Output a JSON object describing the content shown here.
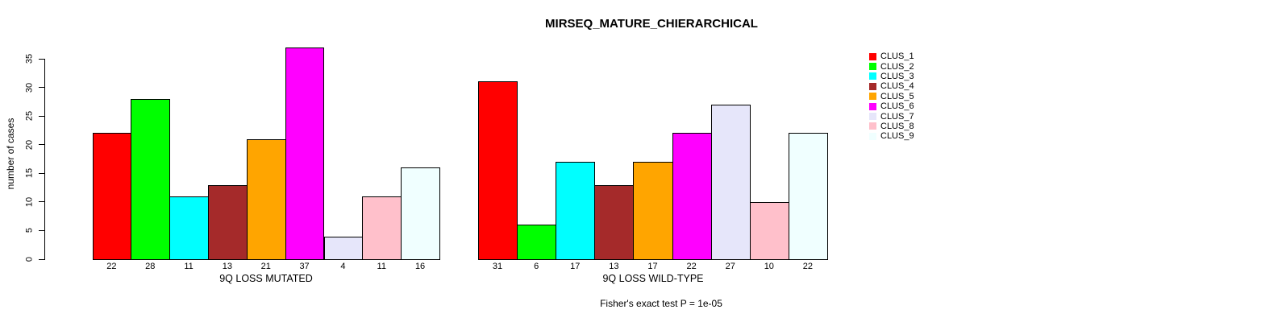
{
  "chart_data": {
    "type": "bar",
    "title": "MIRSEQ_MATURE_CHIERARCHICAL",
    "ylabel": "number of cases",
    "ylim": [
      0,
      35
    ],
    "yticks": [
      0,
      5,
      10,
      15,
      20,
      25,
      30,
      35
    ],
    "grid": false,
    "legend_position": "right",
    "clusters": [
      "CLUS_1",
      "CLUS_2",
      "CLUS_3",
      "CLUS_4",
      "CLUS_5",
      "CLUS_6",
      "CLUS_7",
      "CLUS_8",
      "CLUS_9"
    ],
    "colors": [
      "#FF0000",
      "#00FF00",
      "#00FFFF",
      "#A52A2A",
      "#FFA500",
      "#FF00FF",
      "#E6E6FA",
      "#FFC0CB",
      "#F0FFFF"
    ],
    "groups": [
      {
        "label": "9Q LOSS MUTATED",
        "values": [
          22,
          28,
          11,
          13,
          21,
          37,
          4,
          11,
          16
        ]
      },
      {
        "label": "9Q LOSS WILD-TYPE",
        "values": [
          31,
          6,
          17,
          13,
          17,
          22,
          27,
          10,
          22
        ]
      }
    ],
    "annotation": "Fisher's exact test P = 1e-05",
    "bar_border_color": "#000000",
    "text_color": "#000000",
    "background_color": "#FFFFFF"
  }
}
